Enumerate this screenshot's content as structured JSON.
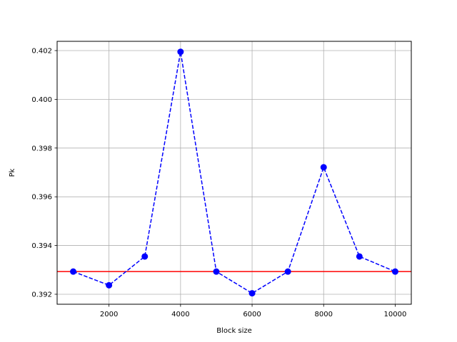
{
  "chart_data": {
    "type": "line",
    "title": "",
    "xlabel": "Block size",
    "ylabel": "Pk",
    "xlim": [
      550,
      10450
    ],
    "ylim": [
      0.39159,
      0.40238
    ],
    "xticks": [
      2000,
      4000,
      6000,
      8000,
      10000
    ],
    "xtick_labels": [
      "2000",
      "4000",
      "6000",
      "8000",
      "10000"
    ],
    "yticks": [
      0.392,
      0.394,
      0.396,
      0.398,
      0.4,
      0.402
    ],
    "ytick_labels": [
      "0.392",
      "0.394",
      "0.396",
      "0.398",
      "0.400",
      "0.402"
    ],
    "grid": true,
    "series": [
      {
        "x": [
          1000,
          2000,
          3000,
          4000,
          5000,
          6000,
          7000,
          8000,
          9000,
          10000
        ],
        "values": [
          0.39293,
          0.39237,
          0.39355,
          0.40195,
          0.39293,
          0.39204,
          0.39293,
          0.39721,
          0.39355,
          0.39293
        ],
        "color": "#0000ff",
        "line_style": "dashed",
        "marker": "circle"
      }
    ],
    "reference_line": {
      "y": 0.39293,
      "color": "#ff0000",
      "line_style": "solid"
    }
  }
}
